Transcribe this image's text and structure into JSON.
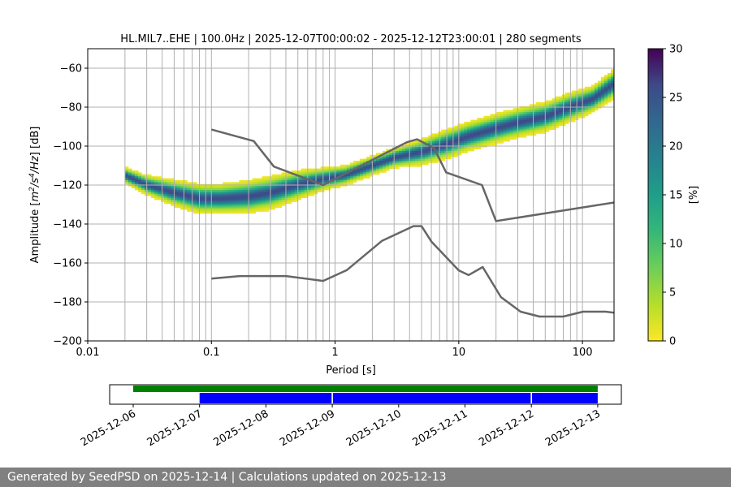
{
  "chart_data": {
    "type": "heatmap",
    "title": "HL.MIL7..EHE | 100.0Hz | 2025-12-07T00:00:02 - 2025-12-12T23:00:01 | 280 segments",
    "xlabel": "Period [s]",
    "ylabel_parts": [
      "Amplitude [",
      "m",
      "2",
      "/",
      "s",
      "4",
      "/",
      "Hz",
      "] [dB]"
    ],
    "xscale": "log",
    "xlim": [
      0.01,
      180
    ],
    "ylim": [
      -200,
      -50
    ],
    "grid": "vertical minor+major on x, major on y",
    "x_ticks": [
      {
        "value": 0.01,
        "label": "0.01"
      },
      {
        "value": 0.1,
        "label": "0.1"
      },
      {
        "value": 1,
        "label": "1"
      },
      {
        "value": 10,
        "label": "10"
      },
      {
        "value": 100,
        "label": "100"
      }
    ],
    "y_ticks": [
      {
        "value": -60,
        "label": "−60"
      },
      {
        "value": -80,
        "label": "−80"
      },
      {
        "value": -100,
        "label": "−100"
      },
      {
        "value": -120,
        "label": "−120"
      },
      {
        "value": -140,
        "label": "−140"
      },
      {
        "value": -160,
        "label": "−160"
      },
      {
        "value": -180,
        "label": "−180"
      },
      {
        "value": -200,
        "label": "−200"
      }
    ],
    "colorbar": {
      "label": "[%]",
      "range": [
        0,
        30
      ],
      "colormap": "viridis_r",
      "ticks": [
        {
          "value": 0,
          "label": "0"
        },
        {
          "value": 5,
          "label": "5"
        },
        {
          "value": 10,
          "label": "10"
        },
        {
          "value": 15,
          "label": "15"
        },
        {
          "value": 20,
          "label": "20"
        },
        {
          "value": 25,
          "label": "25"
        },
        {
          "value": 30,
          "label": "30"
        }
      ]
    },
    "psd_mode_profile": {
      "period": [
        0.02,
        0.03,
        0.05,
        0.08,
        0.12,
        0.2,
        0.3,
        0.5,
        0.8,
        1.2,
        2,
        3,
        5,
        8,
        12,
        20,
        30,
        50,
        80,
        120,
        180
      ],
      "mode_db": [
        -115,
        -120,
        -124,
        -127,
        -127,
        -126,
        -124,
        -120,
        -117,
        -115,
        -110,
        -106,
        -103,
        -99,
        -95,
        -91,
        -88,
        -85,
        -80,
        -76,
        -68
      ],
      "spread_db": [
        5,
        6,
        8,
        9,
        9,
        10,
        10,
        9,
        7,
        6,
        6,
        6,
        8,
        9,
        9,
        9,
        9,
        9,
        9,
        8,
        9
      ]
    },
    "noise_models": [
      {
        "name": "NHNM",
        "color": "#666666",
        "points": [
          [
            0.1,
            -91.5
          ],
          [
            0.22,
            -97.4
          ],
          [
            0.32,
            -110.5
          ],
          [
            0.8,
            -120
          ],
          [
            3.8,
            -98
          ],
          [
            4.6,
            -96.5
          ],
          [
            6.3,
            -101
          ],
          [
            7.9,
            -113.5
          ],
          [
            15.4,
            -120
          ],
          [
            20,
            -138.5
          ],
          [
            354.8,
            -126
          ]
        ]
      },
      {
        "name": "NLNM",
        "color": "#666666",
        "points": [
          [
            0.1,
            -168
          ],
          [
            0.17,
            -166.7
          ],
          [
            0.4,
            -166.7
          ],
          [
            0.8,
            -169.2
          ],
          [
            1.24,
            -163.7
          ],
          [
            2.4,
            -148.6
          ],
          [
            4.3,
            -141.1
          ],
          [
            5,
            -141.1
          ],
          [
            6,
            -149
          ],
          [
            10,
            -163.8
          ],
          [
            12,
            -166.2
          ],
          [
            15.6,
            -162.1
          ],
          [
            21.9,
            -177.5
          ],
          [
            31.6,
            -185
          ],
          [
            45,
            -187.5
          ],
          [
            70,
            -187.5
          ],
          [
            101,
            -185
          ],
          [
            154,
            -185
          ],
          [
            328,
            -187.5
          ]
        ]
      }
    ]
  },
  "timeline": {
    "type": "coverage",
    "date_range": [
      "2025-12-06",
      "2025-12-13"
    ],
    "tick_labels": [
      "2025-12-06",
      "2025-12-07",
      "2025-12-08",
      "2025-12-09",
      "2025-12-10",
      "2025-12-11",
      "2025-12-12",
      "2025-12-13"
    ],
    "green_bar": {
      "color": "#008000",
      "start_day": 0,
      "end_day": 7
    },
    "blue_segments": {
      "color": "#0000ff",
      "spans_day": [
        [
          1,
          2.99
        ],
        [
          3.01,
          5.99
        ],
        [
          6.01,
          7
        ]
      ]
    }
  },
  "footer": {
    "text": "Generated by SeedPSD on 2025-12-14 | Calculations updated on 2025-12-13",
    "background": "#808080"
  }
}
